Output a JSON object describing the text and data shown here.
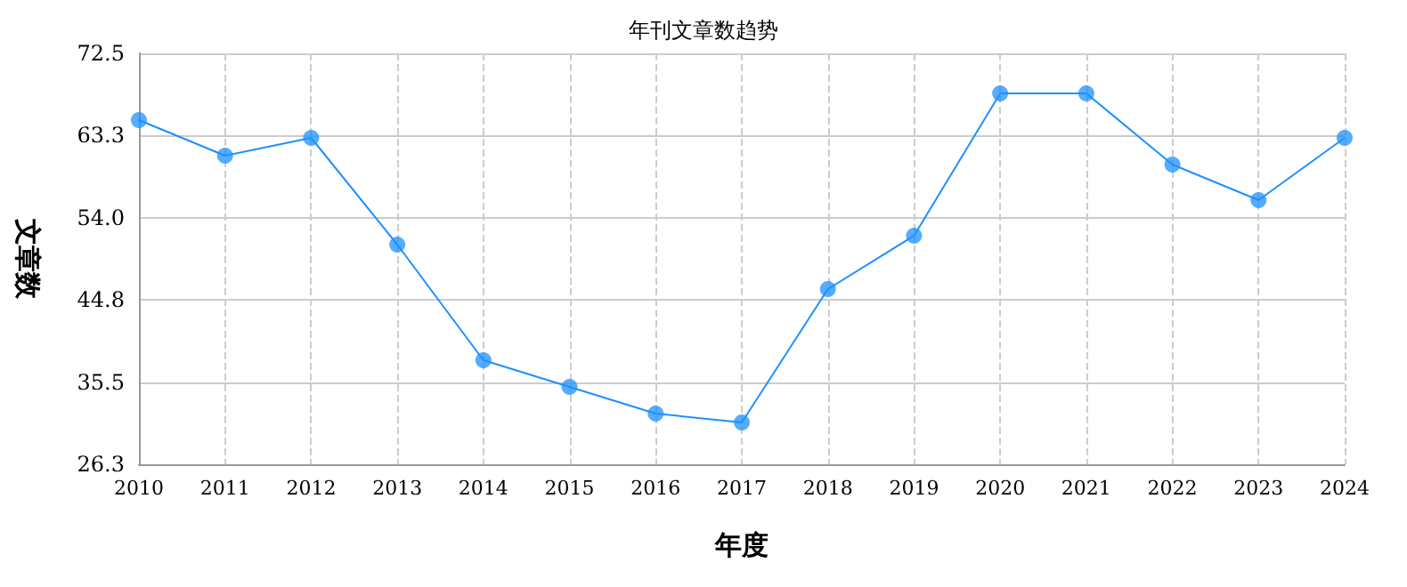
{
  "chart_data": {
    "type": "line",
    "title": "年刊文章数趋势",
    "xlabel": "年度",
    "ylabel": "文章数",
    "categories": [
      "2010",
      "2011",
      "2012",
      "2013",
      "2014",
      "2015",
      "2016",
      "2017",
      "2018",
      "2019",
      "2020",
      "2021",
      "2022",
      "2023",
      "2024"
    ],
    "series": [
      {
        "color": "#1e90ff",
        "values": [
          65,
          61,
          63,
          51,
          38,
          35,
          32,
          31,
          46,
          52,
          68,
          68,
          60,
          56,
          63
        ]
      }
    ],
    "ylim": [
      26.3,
      72.5
    ],
    "yticks": [
      {
        "value": 26.3,
        "label": "26.3"
      },
      {
        "value": 35.54,
        "label": "35.5"
      },
      {
        "value": 44.78,
        "label": "44.8"
      },
      {
        "value": 54.02,
        "label": "54.0"
      },
      {
        "value": 63.26,
        "label": "63.3"
      },
      {
        "value": 72.5,
        "label": "72.5"
      }
    ],
    "grid": true,
    "marker": "circle",
    "line_style": "solid"
  }
}
